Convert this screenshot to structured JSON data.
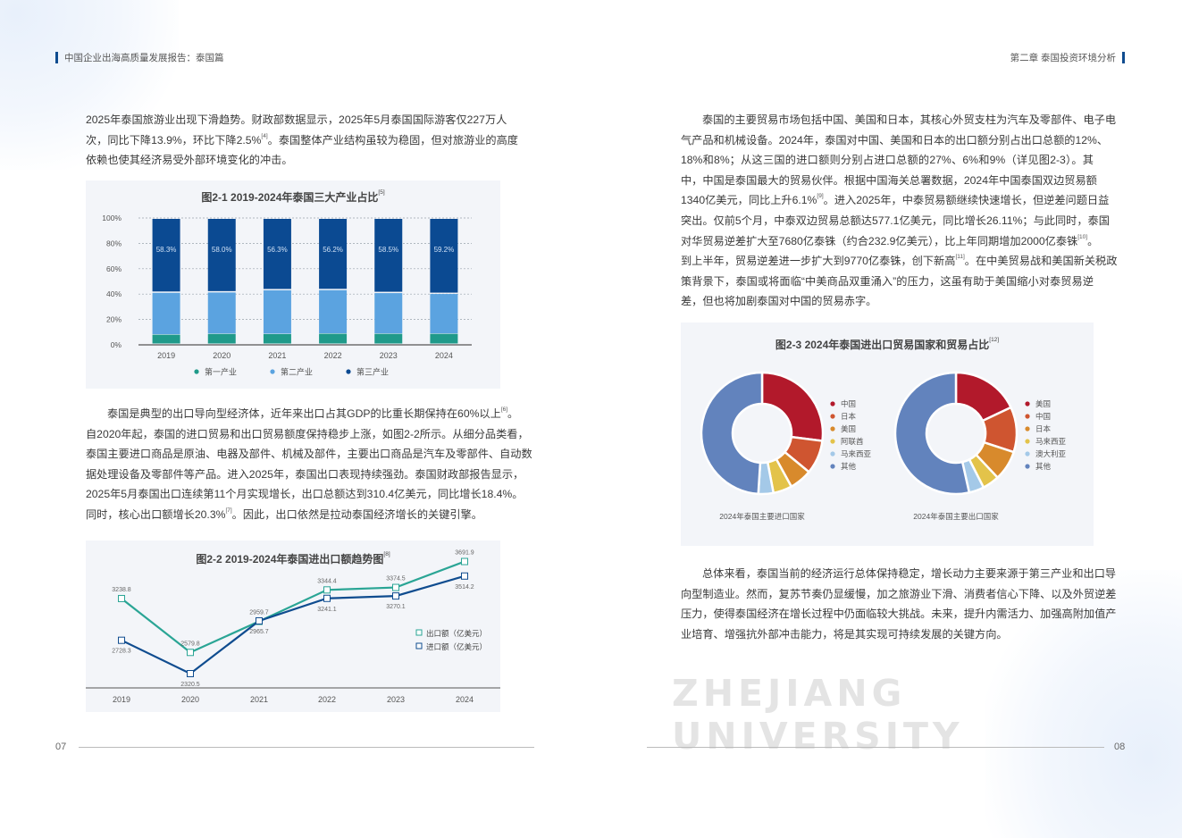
{
  "header": {
    "left": "中国企业出海高质量发展报告：泰国篇",
    "right": "第二章 泰国投资环境分析"
  },
  "footer": {
    "left_page": "07",
    "right_page": "08"
  },
  "watermark": "ZHEJIANG UNIVERSITY",
  "left": {
    "para1": [
      {
        "pre": "2025年泰国旅游业出现下滑趋势。财政部数据显示，2025年5月泰国国际游客仅227万人"
      },
      {
        "pre": "次，同比下降13.9%，环比下降2.5%",
        "sup": "[4]",
        "post": "。泰国整体产业结构虽较为稳固，但对旅游业的高度"
      },
      {
        "pre": "依赖也使其经济易受外部环境变化的冲击。"
      }
    ],
    "para2": [
      {
        "pre": "泰国是典型的出口导向型经济体，近年来出口占其GDP的比重长期保持在60%以上",
        "sup": "[6]",
        "post": "。"
      },
      {
        "pre": "自2020年起，泰国的进口贸易和出口贸易额度保持稳步上涨，如图2-2所示。从细分品类看，"
      },
      {
        "pre": "泰国主要进口商品是原油、电器及部件、机械及部件，主要出口商品是汽车及零部件、自动数"
      },
      {
        "pre": "据处理设备及零部件等产品。进入2025年，泰国出口表现持续强劲。泰国财政部报告显示，"
      },
      {
        "pre": "2025年5月泰国出口连续第11个月实现增长，出口总额达到310.4亿美元，同比增长18.4%。"
      },
      {
        "pre": "同时，核心出口额增长20.3%",
        "sup": "[7]",
        "post": "。因此，出口依然是拉动泰国经济增长的关键引擎。"
      }
    ]
  },
  "right": {
    "para1": [
      {
        "pre": "泰国的主要贸易市场包括中国、美国和日本，其核心外贸支柱为汽车及零部件、电子电"
      },
      {
        "pre": "气产品和机械设备。2024年，泰国对中国、美国和日本的出口额分别占出口总额的12%、"
      },
      {
        "pre": "18%和8%；从这三国的进口额则分别占进口总额的27%、6%和9%（详见图2-3）。其"
      },
      {
        "pre": "中，中国是泰国最大的贸易伙伴。根据中国海关总署数据，2024年中国泰国双边贸易额"
      },
      {
        "pre": "1340亿美元，同比上升6.1%",
        "sup": "[9]",
        "post": "。进入2025年，中泰贸易额继续快速增长，但逆差问题日益"
      },
      {
        "pre": "突出。仅前5个月，中泰双边贸易总额达577.1亿美元，同比增长26.11%；与此同时，泰国"
      },
      {
        "pre": "对华贸易逆差扩大至7680亿泰铢（约合232.9亿美元），比上年同期增加2000亿泰铢",
        "sup": "[10]",
        "post": "。"
      },
      {
        "pre": "到上半年，贸易逆差进一步扩大到9770亿泰铢，创下新高",
        "sup": "[11]",
        "post": "。在中美贸易战和美国新关税政"
      },
      {
        "pre": "策背景下，泰国或将面临“中美商品双重涌入”的压力，这虽有助于美国缩小对泰贸易逆"
      },
      {
        "pre": "差，但也将加剧泰国对中国的贸易赤字。"
      }
    ],
    "para2": [
      {
        "pre": "总体来看，泰国当前的经济运行总体保持稳定，增长动力主要来源于第三产业和出口导"
      },
      {
        "pre": "向型制造业。然而，复苏节奏仍显缓慢，加之旅游业下滑、消费者信心下降、以及外贸逆差"
      },
      {
        "pre": "压力，使得泰国经济在增长过程中仍面临较大挑战。未来，提升内需活力、加强高附加值产"
      },
      {
        "pre": "业培育、增强抗外部冲击能力，将是其实现可持续发展的关键方向。"
      }
    ]
  },
  "chart_data": [
    {
      "type": "bar",
      "stacked": true,
      "title": "图2-1 2019-2024年泰国三大产业占比",
      "title_ref": "[5]",
      "categories": [
        "2019",
        "2020",
        "2021",
        "2022",
        "2023",
        "2024"
      ],
      "yticks": [
        "0%",
        "20%",
        "40%",
        "60%",
        "80%",
        "100%"
      ],
      "ylim": [
        0,
        100
      ],
      "grid": "dashed",
      "legend": "bottom",
      "series": [
        {
          "name": "第一产业",
          "color": "#1f9a8a",
          "values": [
            8.0,
            8.6,
            8.5,
            8.8,
            8.7,
            8.7
          ]
        },
        {
          "name": "第二产业",
          "color": "#5ba3e0",
          "values": [
            33.7,
            33.4,
            35.2,
            35.0,
            32.8,
            32.1
          ]
        },
        {
          "name": "第三产业",
          "color": "#0b4a92",
          "values": [
            58.3,
            58.0,
            56.3,
            56.2,
            58.5,
            59.2
          ],
          "labels": [
            "58.3%",
            "58.0%",
            "56.3%",
            "56.2%",
            "58.5%",
            "59.2%"
          ]
        }
      ]
    },
    {
      "type": "line",
      "title": "图2-2 2019-2024年泰国进出口额趋势图",
      "title_ref": "[8]",
      "x": [
        "2019",
        "2020",
        "2021",
        "2022",
        "2023",
        "2024"
      ],
      "legend": "right",
      "series": [
        {
          "name": "出口额（亿美元）",
          "color": "#2aa595",
          "values": [
            3238.8,
            2579.8,
            2959.7,
            3344.4,
            3374.5,
            3691.9
          ],
          "labels": [
            "3238.8",
            "2579.8",
            "2959.7",
            "3344.4",
            "3374.5",
            "3691.9"
          ]
        },
        {
          "name": "进口额（亿美元）",
          "color": "#0f4c8f",
          "values": [
            2728.3,
            2320.5,
            2965.7,
            3241.1,
            3270.1,
            3514.2
          ],
          "labels": [
            "2728.3",
            "2320.5",
            "2965.7",
            "3241.1",
            "3270.1",
            "3514.2"
          ]
        }
      ]
    },
    {
      "type": "pie",
      "donut": true,
      "title": "图2-3 2024年泰国进出口贸易国家和贸易占比",
      "title_ref": "[12]",
      "charts": [
        {
          "caption": "2024年泰国主要进口国家",
          "slices": [
            {
              "name": "中国",
              "value": 27,
              "color": "#b2192b"
            },
            {
              "name": "日本",
              "value": 9,
              "color": "#cf5530"
            },
            {
              "name": "美国",
              "value": 6,
              "color": "#d88a2c"
            },
            {
              "name": "阿联酋",
              "value": 5,
              "color": "#e3c34a"
            },
            {
              "name": "马来西亚",
              "value": 4,
              "color": "#a4c9e8"
            },
            {
              "name": "其他",
              "value": 49,
              "color": "#6283bd"
            }
          ]
        },
        {
          "caption": "2024年泰国主要出口国家",
          "slices": [
            {
              "name": "美国",
              "value": 18,
              "color": "#b2192b"
            },
            {
              "name": "中国",
              "value": 12,
              "color": "#cf5530"
            },
            {
              "name": "日本",
              "value": 8,
              "color": "#d88a2c"
            },
            {
              "name": "马来西亚",
              "value": 4.5,
              "color": "#e3c34a"
            },
            {
              "name": "澳大利亚",
              "value": 4,
              "color": "#a4c9e8"
            },
            {
              "name": "其他",
              "value": 53.5,
              "color": "#6283bd"
            }
          ]
        }
      ]
    }
  ]
}
